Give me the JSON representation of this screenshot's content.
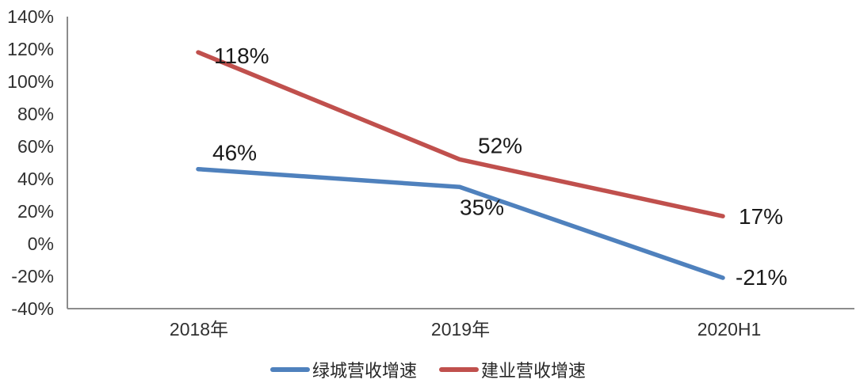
{
  "chart_data": {
    "type": "line",
    "title": "",
    "xlabel": "",
    "ylabel": "",
    "categories": [
      "2018年",
      "2019年",
      "2020H1"
    ],
    "series": [
      {
        "name": "绿城营收增速",
        "color": "#4F81BD",
        "values": [
          46,
          35,
          -21
        ],
        "point_labels": [
          "46%",
          "35%",
          "-21%"
        ]
      },
      {
        "name": "建业营收增速",
        "color": "#C0504D",
        "values": [
          118,
          52,
          17
        ],
        "point_labels": [
          "118%",
          "52%",
          "17%"
        ]
      }
    ],
    "ylim": [
      -40,
      140
    ],
    "ytick_step": 20,
    "ytick_labels": [
      "140%",
      "120%",
      "100%",
      "80%",
      "60%",
      "40%",
      "20%",
      "0%",
      "-20%",
      "-40%"
    ],
    "grid": false,
    "legend_position": "bottom",
    "axis_color": "#8c8c8c",
    "text_color": "#303030",
    "data_label_color": "#1a1a1a"
  }
}
